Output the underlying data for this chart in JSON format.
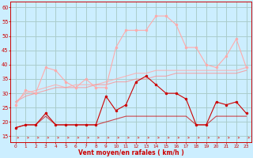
{
  "x": [
    0,
    1,
    2,
    3,
    4,
    5,
    6,
    7,
    8,
    9,
    10,
    11,
    12,
    13,
    14,
    15,
    16,
    17,
    18,
    19,
    20,
    21,
    22,
    23
  ],
  "line1_rafales": [
    26,
    31,
    30,
    39,
    38,
    34,
    32,
    35,
    32,
    32,
    46,
    52,
    52,
    52,
    57,
    57,
    54,
    46,
    46,
    40,
    39,
    43,
    49,
    39
  ],
  "line2_moy_smooth": [
    27,
    30,
    31,
    32,
    33,
    32,
    33,
    33,
    33,
    34,
    35,
    36,
    37,
    37,
    38,
    38,
    38,
    38,
    38,
    38,
    38,
    38,
    38,
    39
  ],
  "line3_moy_smooth2": [
    27,
    29,
    30,
    31,
    32,
    32,
    32,
    32,
    33,
    33,
    34,
    34,
    35,
    35,
    36,
    36,
    37,
    37,
    37,
    37,
    37,
    37,
    37,
    38
  ],
  "line4_vent_inst": [
    18,
    19,
    19,
    23,
    19,
    19,
    19,
    19,
    19,
    29,
    24,
    26,
    34,
    36,
    33,
    30,
    30,
    28,
    19,
    19,
    27,
    26,
    27,
    23
  ],
  "line5_vent_moy": [
    18,
    19,
    19,
    22,
    19,
    19,
    19,
    19,
    19,
    20,
    21,
    22,
    22,
    22,
    22,
    22,
    22,
    22,
    19,
    19,
    22,
    22,
    22,
    22
  ],
  "background_color": "#cceeff",
  "grid_color": "#aacccc",
  "color_light_pink": "#ffaaaa",
  "color_medium_pink": "#ff8888",
  "color_dark_red": "#cc0000",
  "color_arrow": "#dd4444",
  "ylabel_ticks": [
    15,
    20,
    25,
    30,
    35,
    40,
    45,
    50,
    55,
    60
  ],
  "xlabel": "Vent moyen/en rafales ( km/h )",
  "ylim": [
    13,
    62
  ],
  "xlim": [
    -0.5,
    23.5
  ]
}
